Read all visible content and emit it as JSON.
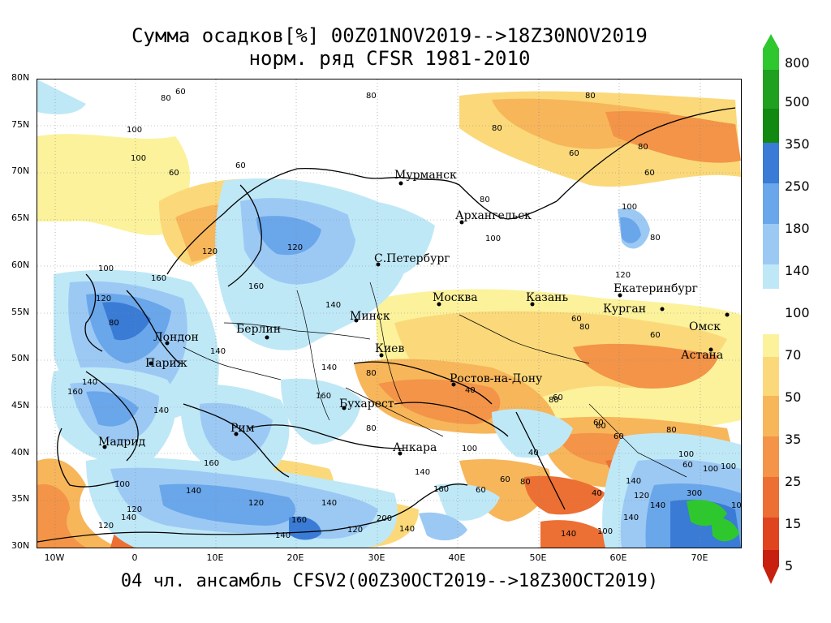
{
  "title": {
    "line1": "Сумма осадков[%] 00Z01NOV2019-->18Z30NOV2019",
    "line2": "норм. ряд CFSR 1981-2010"
  },
  "footer": "04 чл. ансамбль CFSV2(00Z30OCT2019-->18Z30OCT2019)",
  "lat_ticks": [
    "80N",
    "75N",
    "70N",
    "65N",
    "60N",
    "55N",
    "50N",
    "45N",
    "40N",
    "35N",
    "30N"
  ],
  "lon_ticks": [
    "10W",
    "0",
    "10E",
    "20E",
    "30E",
    "40E",
    "50E",
    "60E",
    "70E"
  ],
  "colorbar": {
    "labels": [
      "800",
      "500",
      "350",
      "250",
      "180",
      "140",
      "100",
      "70",
      "50",
      "35",
      "25",
      "15",
      "5"
    ],
    "colors": {
      "c800": "#2ec82e",
      "c500": "#1fa01f",
      "c350": "#128a12",
      "c250": "#3a7bd5",
      "c180": "#6aa6ea",
      "c140": "#9cc9f4",
      "c120": "#bfe8f7",
      "c100": "#ffffff",
      "c70": "#fcf29c",
      "c60": "#fbd97a",
      "c50": "#f7b65a",
      "c35": "#f39448",
      "c25": "#ec6f33",
      "c15": "#e0441f",
      "c5": "#c8200f"
    }
  },
  "cities": [
    {
      "name": "Мурманск"
    },
    {
      "name": "Архангельск"
    },
    {
      "name": "С.Петербург"
    },
    {
      "name": "Москва"
    },
    {
      "name": "Казань"
    },
    {
      "name": "Екатеринбург"
    },
    {
      "name": "Курган"
    },
    {
      "name": "Омск"
    },
    {
      "name": "Астана"
    },
    {
      "name": "Минск"
    },
    {
      "name": "Киев"
    },
    {
      "name": "Берлин"
    },
    {
      "name": "Лондон"
    },
    {
      "name": "Париж"
    },
    {
      "name": "Бухарест"
    },
    {
      "name": "Ростов-на-Дону"
    },
    {
      "name": "Мадрид"
    },
    {
      "name": "Рим"
    },
    {
      "name": "Анкара"
    }
  ],
  "contour_labels": [
    "80",
    "60",
    "100",
    "80",
    "80",
    "80",
    "60",
    "80",
    "100",
    "60",
    "60",
    "60",
    "100",
    "80",
    "80",
    "100",
    "120",
    "100",
    "160",
    "140",
    "120",
    "160",
    "120",
    "160",
    "140",
    "120",
    "80",
    "140",
    "140",
    "140",
    "160",
    "160",
    "140",
    "120",
    "100",
    "140",
    "160",
    "140",
    "140",
    "120",
    "140",
    "160",
    "200",
    "140",
    "140",
    "100",
    "120",
    "120",
    "80",
    "60",
    "60",
    "80",
    "60",
    "60",
    "60",
    "60",
    "60",
    "80",
    "60",
    "100",
    "100",
    "140",
    "100",
    "300",
    "140",
    "140",
    "100",
    "40",
    "80",
    "60",
    "40",
    "40",
    "80",
    "120",
    "100",
    "80"
  ]
}
